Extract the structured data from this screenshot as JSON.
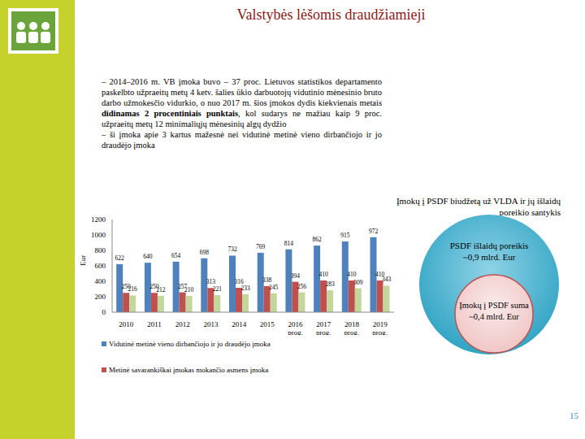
{
  "header": {
    "title": "Valstybės lėšomis draudžiamieji",
    "page": "15"
  },
  "text": [
    {
      "before": "– 2014–2016 m. VB įmoka buvo – 37 proc. Lietuvos statistikos departamento paskelbto užpraeitų metų 4 ketv. šalies ūkio darbuotojų vidutinio mėnesinio bruto darbo užmokesčio vidurkio, o nuo 2017 m. šios įmokos dydis kiekvienais metais ",
      "bold": "didinamas 2 procentiniais punktais",
      "after": ", kol sudarys ne mažiau kaip 9 proc. užpraeitų metų 12 minimaliųjų mėnesinių algų dydžio"
    },
    {
      "before": "– ši įmoka apie 3 kartus mažesnė nei vidutinė metinė vieno dirbančiojo ir jo draudėjo įmoka",
      "bold": "",
      "after": ""
    }
  ],
  "chart_data": {
    "type": "bar",
    "categories": [
      "2010",
      "2011",
      "2012",
      "2013",
      "2014",
      "2015",
      "2016 prog.",
      "2017 prog.",
      "2018 prog.",
      "2019 prog."
    ],
    "series": [
      {
        "name": "Vidutinė metinė vieno dirbančiojo ir jo draudėjo įmoka",
        "color": "#4f81bd",
        "values": [
          622,
          640,
          654,
          698,
          732,
          769,
          814,
          862,
          915,
          972
        ]
      },
      {
        "name": "Metinė savarankiškai įmokas mokančio asmens įmoka",
        "color": "#c0504d",
        "values": [
          250,
          250,
          257,
          313,
          316,
          338,
          394,
          410,
          410,
          410
        ]
      },
      {
        "color": "#c3d69b",
        "values": [
          216,
          212,
          210,
          221,
          233,
          245,
          256,
          283,
          309,
          343
        ]
      }
    ],
    "ylim": [
      0,
      1200
    ],
    "yticks": [
      0,
      200,
      400,
      600,
      800,
      1000,
      1200
    ],
    "y_label": "Eur",
    "data_labels": true,
    "grid": false,
    "legend": "bottom"
  },
  "diagram": {
    "title": "Įmokų į PSDF biudžetą už VLDA ir jų išlaidų poreikio santykis",
    "outer": {
      "label": "PSDF išlaidų poreikis",
      "value_text": "~0,9 mlrd. Eur"
    },
    "inner": {
      "label": "Įmokų į PSDF suma",
      "value_text": "~0,4 mlrd. Eur"
    }
  }
}
